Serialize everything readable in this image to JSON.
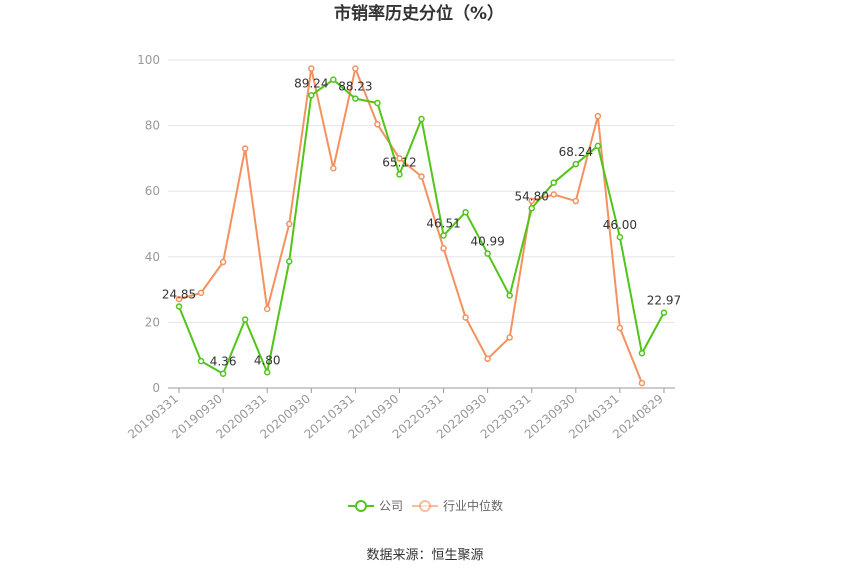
{
  "chart_data": {
    "type": "line",
    "title": "市销率历史分位（%）",
    "ylim": [
      0,
      100
    ],
    "yticks": [
      0,
      20,
      40,
      60,
      80,
      100
    ],
    "x_tick_labels": [
      "20190331",
      "20190930",
      "20200331",
      "20200930",
      "20210331",
      "20210930",
      "20220331",
      "20220930",
      "20230331",
      "20230930",
      "20240331",
      "20240829"
    ],
    "grid": true,
    "legend_position": "bottom",
    "series": [
      {
        "name": "公司",
        "color": "#52c41a",
        "values": [
          24.85,
          8.2,
          4.36,
          20.9,
          4.8,
          38.6,
          89.24,
          94.0,
          88.23,
          86.9,
          65.12,
          82.0,
          46.51,
          53.6,
          40.99,
          28.2,
          54.8,
          62.6,
          68.24,
          73.8,
          46.0,
          10.6,
          22.97
        ]
      },
      {
        "name": "行业中位数",
        "color": "#f4915f",
        "values": [
          27.1,
          29.0,
          38.4,
          73.0,
          24.1,
          50.0,
          97.4,
          67.0,
          97.4,
          80.4,
          70.0,
          64.5,
          42.6,
          21.5,
          8.9,
          15.4,
          57.1,
          59.0,
          57.0,
          82.9,
          18.3,
          1.5,
          null
        ]
      }
    ],
    "data_labels": [
      {
        "index": 0,
        "text": "24.85"
      },
      {
        "index": 2,
        "text": "4.36"
      },
      {
        "index": 4,
        "text": "4.80"
      },
      {
        "index": 6,
        "text": "89.24"
      },
      {
        "index": 8,
        "text": "88.23"
      },
      {
        "index": 10,
        "text": "65.12"
      },
      {
        "index": 12,
        "text": "46.51"
      },
      {
        "index": 14,
        "text": "40.99"
      },
      {
        "index": 16,
        "text": "54.80"
      },
      {
        "index": 18,
        "text": "68.24"
      },
      {
        "index": 20,
        "text": "46.00"
      },
      {
        "index": 22,
        "text": "22.97"
      }
    ]
  },
  "legend": {
    "company": "公司",
    "industry": "行业中位数"
  },
  "source": "数据来源：恒生聚源"
}
